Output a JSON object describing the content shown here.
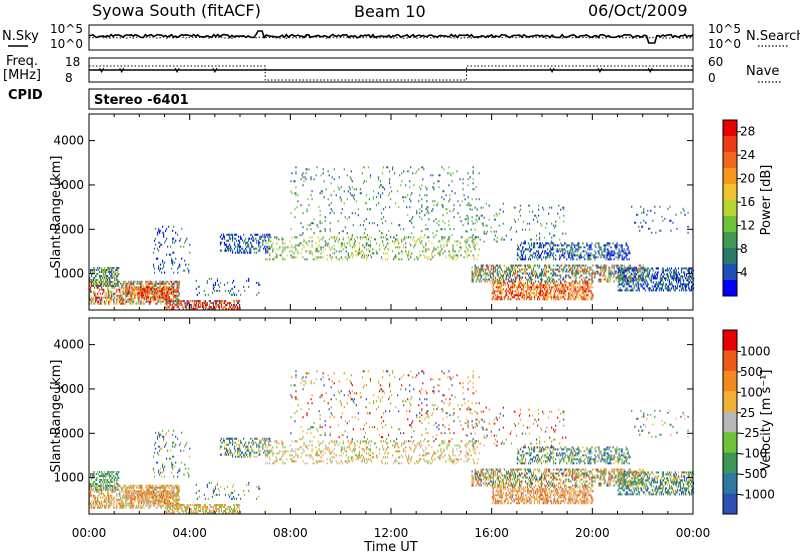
{
  "header": {
    "station": "Syowa South (fitACF)",
    "beam": "Beam 10",
    "date": "06/Oct/2009"
  },
  "top_panels": {
    "nsky_label": "N.Sky",
    "nsearch_label": "N.Search",
    "freq_label_1": "Freq.",
    "freq_label_2": "[MHz]",
    "nave_label": "Nave",
    "cpid_label": "CPID",
    "cpid_value": "Stereo -6401",
    "noise_ticks_left": [
      "10^5",
      "10^0"
    ],
    "noise_ticks_right": [
      "10^5",
      "10^0"
    ],
    "freq_ticks": [
      "18",
      "8"
    ],
    "nave_ticks": [
      "60",
      "0"
    ]
  },
  "chart_data": [
    {
      "type": "heatmap",
      "title": "",
      "xlabel": "",
      "ylabel": "Slant Range [km]",
      "x_ticks": [
        "00:00",
        "04:00",
        "08:00",
        "12:00",
        "16:00",
        "20:00",
        "00:00"
      ],
      "y_ticks": [
        "1000",
        "2000",
        "3000",
        "4000"
      ],
      "xlim_hours": [
        0,
        24
      ],
      "ylim": [
        180,
        4600
      ],
      "colorbar": {
        "label": "Power [dB]",
        "ticks": [
          "4",
          "8",
          "12",
          "16",
          "20",
          "24",
          "28"
        ],
        "range": [
          0,
          30
        ],
        "colors": [
          "#0000ff",
          "#1f4fb5",
          "#2a7a6a",
          "#3f9950",
          "#6fc23a",
          "#b7d834",
          "#f2c230",
          "#f7981e",
          "#f2671c",
          "#ee3a16",
          "#e60000"
        ]
      }
    },
    {
      "type": "heatmap",
      "title": "",
      "xlabel": "Time UT",
      "ylabel": "Slant Range [km]",
      "x_ticks": [
        "00:00",
        "04:00",
        "08:00",
        "12:00",
        "16:00",
        "20:00",
        "00:00"
      ],
      "y_ticks": [
        "1000",
        "2000",
        "3000",
        "4000"
      ],
      "xlim_hours": [
        0,
        24
      ],
      "ylim": [
        180,
        4600
      ],
      "colorbar": {
        "label": "Velocity [m s⁻¹]",
        "ticks": [
          "1000",
          "500",
          "100",
          "25",
          "-25",
          "-100",
          "-500",
          "-1000"
        ],
        "colors": [
          "#2e4fb6",
          "#2f7aa0",
          "#3c9656",
          "#6fc23a",
          "#b8b8b8",
          "#f2b134",
          "#f38a1e",
          "#ef5a16",
          "#e60000"
        ]
      }
    }
  ]
}
